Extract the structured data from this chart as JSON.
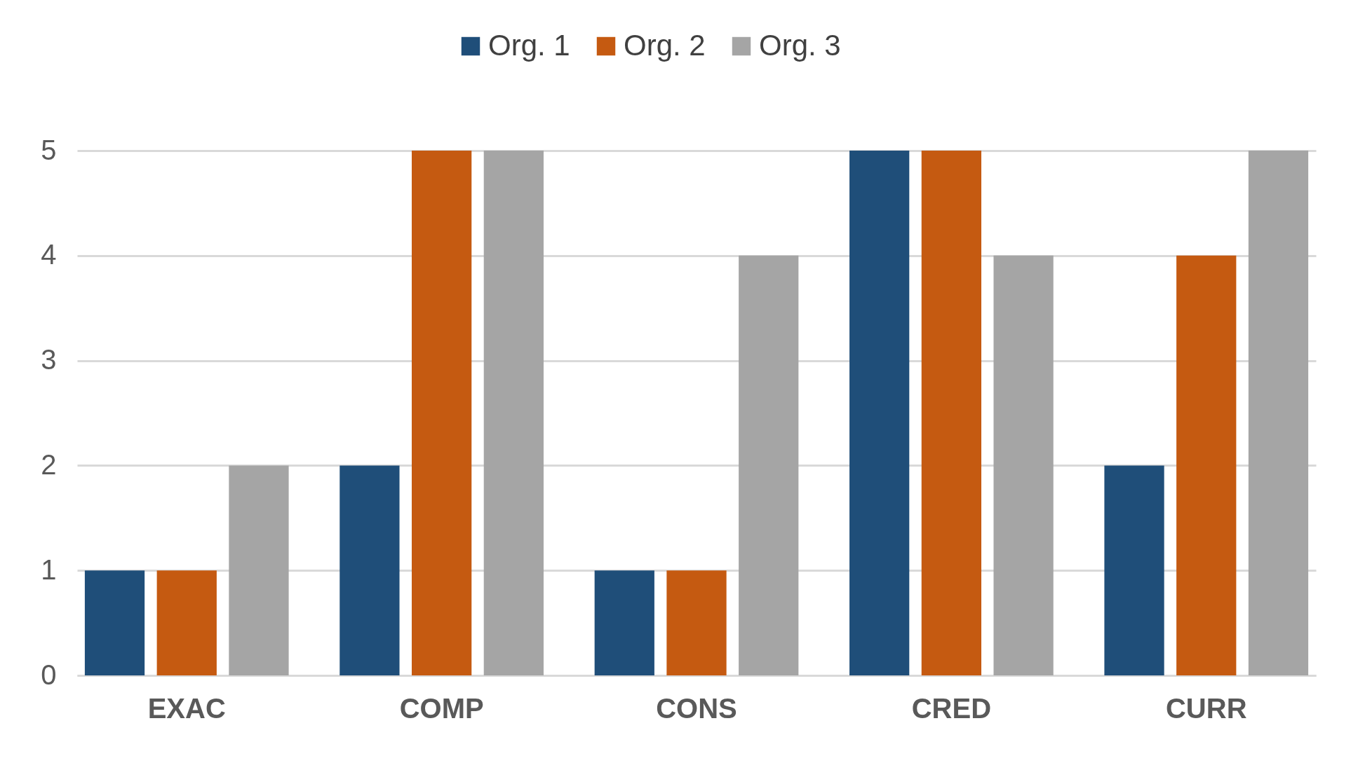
{
  "chart_data": {
    "type": "bar",
    "categories": [
      "EXAC",
      "COMP",
      "CONS",
      "CRED",
      "CURR"
    ],
    "series": [
      {
        "name": "Org. 1",
        "color": "#1f4e79",
        "values": [
          1,
          2,
          1,
          5,
          2
        ]
      },
      {
        "name": "Org. 2",
        "color": "#c55a11",
        "values": [
          1,
          5,
          1,
          5,
          4
        ]
      },
      {
        "name": "Org. 3",
        "color": "#a5a5a5",
        "values": [
          2,
          5,
          4,
          4,
          5
        ]
      }
    ],
    "ylim": [
      0,
      5
    ],
    "yticks": [
      0,
      1,
      2,
      3,
      4,
      5
    ],
    "grid": "y",
    "legend": "top"
  }
}
